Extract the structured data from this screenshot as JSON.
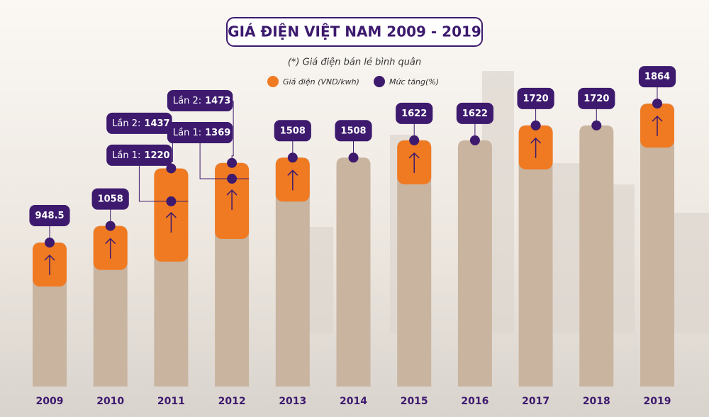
{
  "chart_data": {
    "type": "bar",
    "title": "GIÁ ĐIỆN VIỆT NAM 2009 - 2019",
    "subtitle": "(*) Giá điện bán lẻ bình quân",
    "legend": [
      {
        "name": "Giá điện (VND/kwh)",
        "color": "#f07a22"
      },
      {
        "name": "Mức tăng(%)",
        "color": "#3d1a6e"
      }
    ],
    "categories": [
      "2009",
      "2010",
      "2011",
      "2012",
      "2013",
      "2014",
      "2015",
      "2016",
      "2017",
      "2018",
      "2019"
    ],
    "values": [
      948.5,
      1058,
      1437,
      1473,
      1508,
      1508,
      1622,
      1622,
      1720,
      1720,
      1864
    ],
    "value_prefix": [
      null,
      null,
      "Lần 2:",
      "Lần 2:",
      null,
      null,
      null,
      null,
      null,
      null,
      null
    ],
    "mid_steps": [
      null,
      null,
      {
        "label": "Lần 1:",
        "value": 1220
      },
      {
        "label": "Lần 1:",
        "value": 1369
      },
      null,
      null,
      null,
      null,
      null,
      null,
      null
    ],
    "bar_color": "#c9b4a0"
  }
}
